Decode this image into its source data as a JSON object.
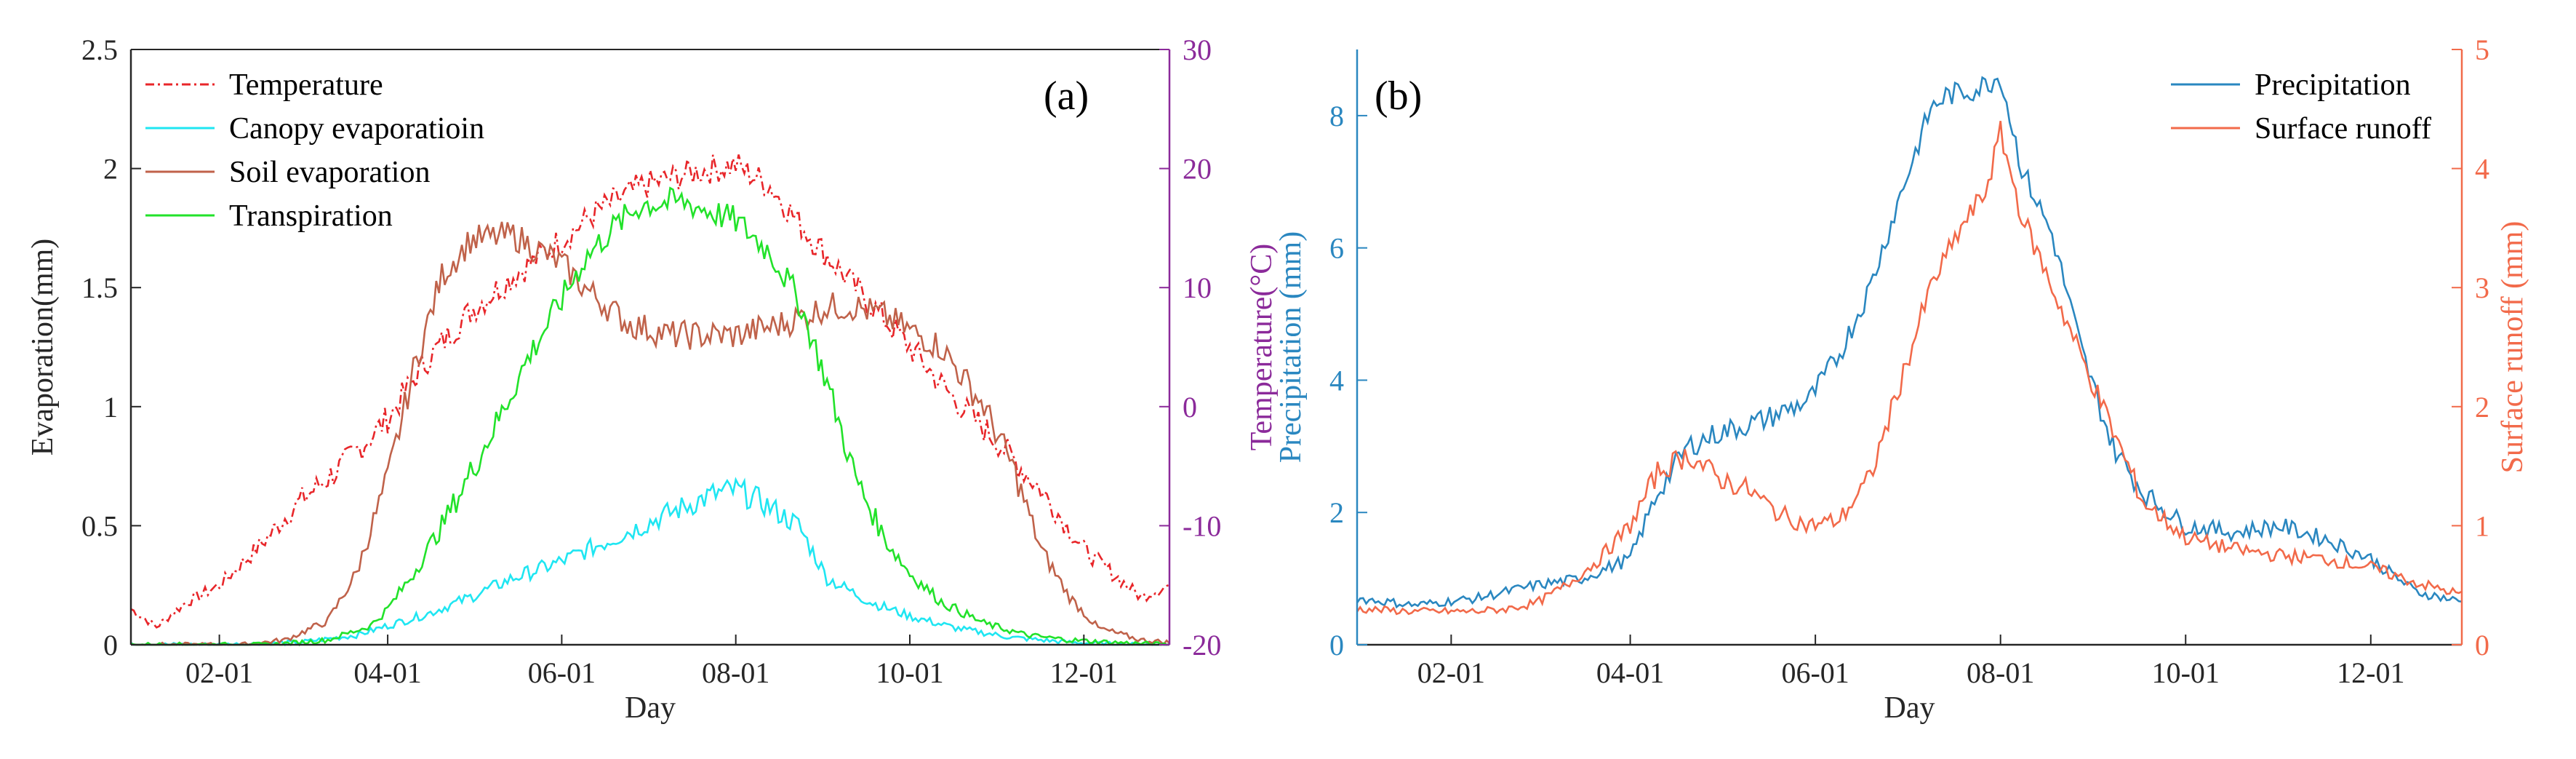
{
  "chart_data": [
    {
      "panel_label": "(a)",
      "type": "line",
      "xlabel": "Day",
      "x_tick_labels": [
        "02-01",
        "04-01",
        "06-01",
        "08-01",
        "10-01",
        "12-01"
      ],
      "x_ticks_day": [
        32,
        91,
        152,
        213,
        274,
        335
      ],
      "xlim": [
        1,
        365
      ],
      "ylabel_left": "Evaporation(mm)",
      "ylim_left": [
        0,
        2.5
      ],
      "y_ticks_left": [
        "0",
        "0.5",
        "1",
        "1.5",
        "2",
        "2.5"
      ],
      "y_ticks_left_values": [
        0,
        0.5,
        1,
        1.5,
        2,
        2.5
      ],
      "ylabel_right": "Temperature(°C)",
      "ylim_right": [
        -20,
        30
      ],
      "y_ticks_right": [
        "-20",
        "-10",
        "0",
        "10",
        "20",
        "30"
      ],
      "y_ticks_right_values": [
        -20,
        -10,
        0,
        10,
        20,
        30
      ],
      "legend_position": "top-left",
      "series": [
        {
          "name": "Temperature",
          "axis": "right",
          "color": "#e8262a",
          "dash": "dashdot",
          "x": [
            1,
            10,
            20,
            32,
            45,
            60,
            75,
            91,
            105,
            120,
            135,
            152,
            165,
            180,
            195,
            205,
            213,
            225,
            240,
            255,
            274,
            290,
            305,
            320,
            335,
            345,
            355,
            365
          ],
          "values": [
            -17,
            -18.5,
            -16.5,
            -15,
            -12,
            -8,
            -5,
            -1,
            4,
            8,
            11,
            14,
            16.5,
            18.5,
            19.5,
            20,
            20.3,
            18.5,
            14,
            10,
            5,
            0.5,
            -3,
            -7,
            -12,
            -14,
            -16,
            -15
          ]
        },
        {
          "name": "Canopy evaporatioin",
          "axis": "left",
          "color": "#1fe6f2",
          "dash": "solid",
          "x": [
            1,
            32,
            60,
            80,
            91,
            105,
            120,
            135,
            152,
            165,
            180,
            195,
            205,
            213,
            222,
            235,
            245,
            260,
            274,
            290,
            310,
            330,
            350,
            365
          ],
          "values": [
            0,
            0,
            0.01,
            0.04,
            0.08,
            0.13,
            0.2,
            0.28,
            0.35,
            0.42,
            0.5,
            0.58,
            0.63,
            0.65,
            0.6,
            0.5,
            0.28,
            0.18,
            0.12,
            0.07,
            0.03,
            0.01,
            0,
            0
          ]
        },
        {
          "name": "Soil evaporation",
          "axis": "left",
          "color": "#c0624a",
          "dash": "solid",
          "x": [
            1,
            40,
            55,
            70,
            80,
            91,
            100,
            110,
            120,
            135,
            145,
            152,
            160,
            168,
            175,
            190,
            213,
            230,
            245,
            255,
            265,
            274,
            285,
            300,
            310,
            320,
            330,
            340,
            355,
            365
          ],
          "values": [
            0,
            0,
            0.02,
            0.1,
            0.3,
            0.7,
            1.15,
            1.55,
            1.7,
            1.72,
            1.65,
            1.6,
            1.5,
            1.42,
            1.35,
            1.3,
            1.3,
            1.35,
            1.42,
            1.42,
            1.38,
            1.32,
            1.25,
            1.0,
            0.75,
            0.4,
            0.2,
            0.07,
            0.02,
            0.01
          ]
        },
        {
          "name": "Transpiration",
          "axis": "left",
          "color": "#22e22a",
          "dash": "solid",
          "x": [
            1,
            50,
            70,
            85,
            91,
            100,
            110,
            120,
            130,
            140,
            152,
            160,
            170,
            180,
            195,
            213,
            225,
            235,
            245,
            255,
            265,
            274,
            285,
            300,
            315,
            330,
            345,
            365
          ],
          "values": [
            0,
            0,
            0.02,
            0.08,
            0.15,
            0.3,
            0.5,
            0.72,
            0.95,
            1.2,
            1.45,
            1.62,
            1.75,
            1.85,
            1.86,
            1.78,
            1.65,
            1.45,
            1.1,
            0.7,
            0.45,
            0.3,
            0.18,
            0.09,
            0.04,
            0.02,
            0.01,
            0
          ]
        }
      ]
    },
    {
      "panel_label": "(b)",
      "type": "line",
      "xlabel": "Day",
      "x_tick_labels": [
        "02-01",
        "04-01",
        "06-01",
        "08-01",
        "10-01",
        "12-01"
      ],
      "x_ticks_day": [
        32,
        91,
        152,
        213,
        274,
        335
      ],
      "xlim": [
        1,
        365
      ],
      "ylabel_left": "Precipitation (mm)",
      "ylim_left": [
        0,
        9
      ],
      "y_ticks_left": [
        "0",
        "2",
        "4",
        "6",
        "8"
      ],
      "y_ticks_left_values": [
        0,
        2,
        4,
        6,
        8
      ],
      "ylabel_right": "Surface runoff  (mm)",
      "ylim_right": [
        0,
        5
      ],
      "y_ticks_right": [
        "0",
        "1",
        "2",
        "3",
        "4",
        "5"
      ],
      "y_ticks_right_values": [
        0,
        1,
        2,
        3,
        4,
        5
      ],
      "legend_position": "top-right",
      "series": [
        {
          "name": "Precipitation",
          "axis": "left",
          "color": "#2a87c0",
          "dash": "solid",
          "x": [
            1,
            20,
            40,
            60,
            75,
            91,
            100,
            110,
            120,
            135,
            150,
            160,
            170,
            180,
            190,
            195,
            205,
            213,
            220,
            230,
            240,
            250,
            260,
            274,
            290,
            305,
            320,
            335,
            350,
            365
          ],
          "values": [
            0.7,
            0.6,
            0.7,
            0.9,
            1.0,
            1.3,
            2.3,
            3.0,
            3.2,
            3.4,
            3.7,
            4.4,
            5.4,
            6.8,
            8.1,
            8.3,
            8.4,
            8.6,
            7.2,
            6.2,
            4.4,
            3.0,
            2.3,
            1.8,
            1.7,
            1.8,
            1.6,
            1.3,
            0.8,
            0.65
          ]
        },
        {
          "name": "Surface runoff",
          "axis": "right",
          "color": "#f26a4a",
          "dash": "solid",
          "x": [
            1,
            20,
            40,
            50,
            60,
            70,
            80,
            91,
            100,
            110,
            120,
            130,
            140,
            150,
            160,
            170,
            180,
            190,
            200,
            208,
            213,
            220,
            230,
            240,
            250,
            260,
            274,
            290,
            305,
            320,
            335,
            350,
            365
          ],
          "values": [
            0.3,
            0.28,
            0.28,
            0.3,
            0.35,
            0.5,
            0.7,
            1.0,
            1.45,
            1.6,
            1.4,
            1.3,
            1.1,
            1.0,
            1.05,
            1.4,
            2.2,
            3.0,
            3.5,
            3.8,
            4.3,
            3.6,
            3.0,
            2.4,
            1.8,
            1.2,
            0.9,
            0.8,
            0.75,
            0.72,
            0.65,
            0.52,
            0.42
          ]
        }
      ]
    }
  ]
}
